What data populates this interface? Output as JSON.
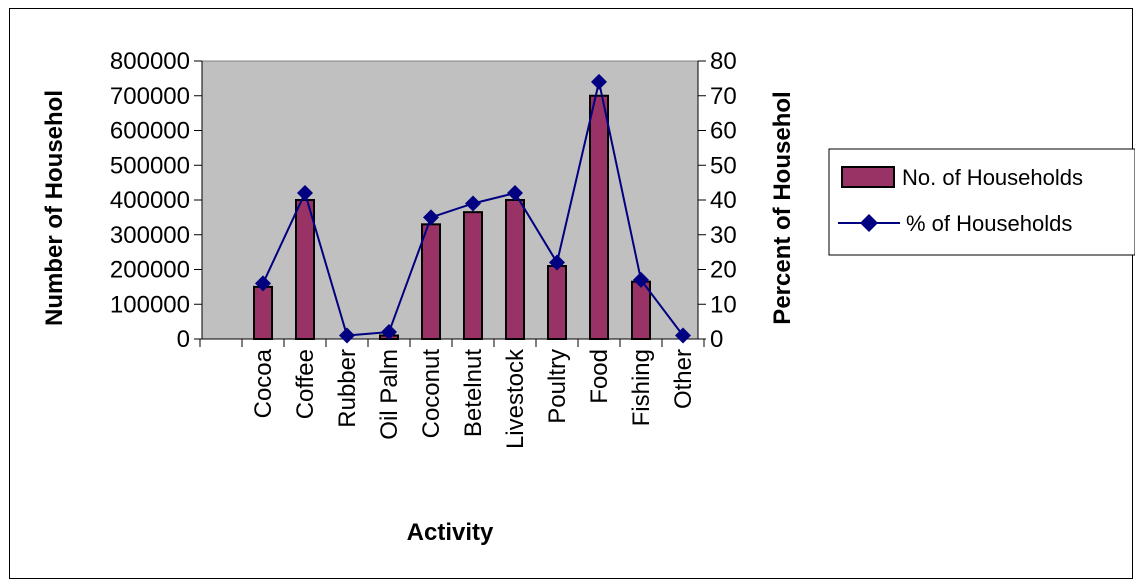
{
  "chart_data": {
    "type": "bar",
    "categories": [
      "Cocoa",
      "Coffee",
      "Rubber",
      "Oil Palm",
      "Coconut",
      "Betelnut",
      "Livestock",
      "Poultry",
      "Food",
      "Fishing",
      "Other"
    ],
    "series": [
      {
        "name": "No. of Households",
        "type": "bar",
        "axis": "left",
        "color": "#993366",
        "values": [
          150000,
          400000,
          0,
          10000,
          330000,
          365000,
          400000,
          210000,
          700000,
          165000,
          0
        ]
      },
      {
        "name": "% of Households",
        "type": "line",
        "axis": "right",
        "color": "#000080",
        "marker": "diamond",
        "values": [
          16,
          42,
          1,
          2,
          35,
          39,
          42,
          22,
          74,
          17,
          1
        ]
      }
    ],
    "xlabel": "Activity",
    "ylabel": "Number of Househol",
    "y2label": "Percent of Househol",
    "ylim": [
      0,
      800000
    ],
    "y2lim": [
      0,
      80
    ],
    "yticks": [
      "0",
      "100000",
      "200000",
      "300000",
      "400000",
      "500000",
      "600000",
      "700000",
      "800000"
    ],
    "y2ticks": [
      "0",
      "10",
      "20",
      "30",
      "40",
      "50",
      "60",
      "70",
      "80"
    ],
    "plot_background": "#c0c0c0",
    "grid": false,
    "legend_position": "right"
  }
}
